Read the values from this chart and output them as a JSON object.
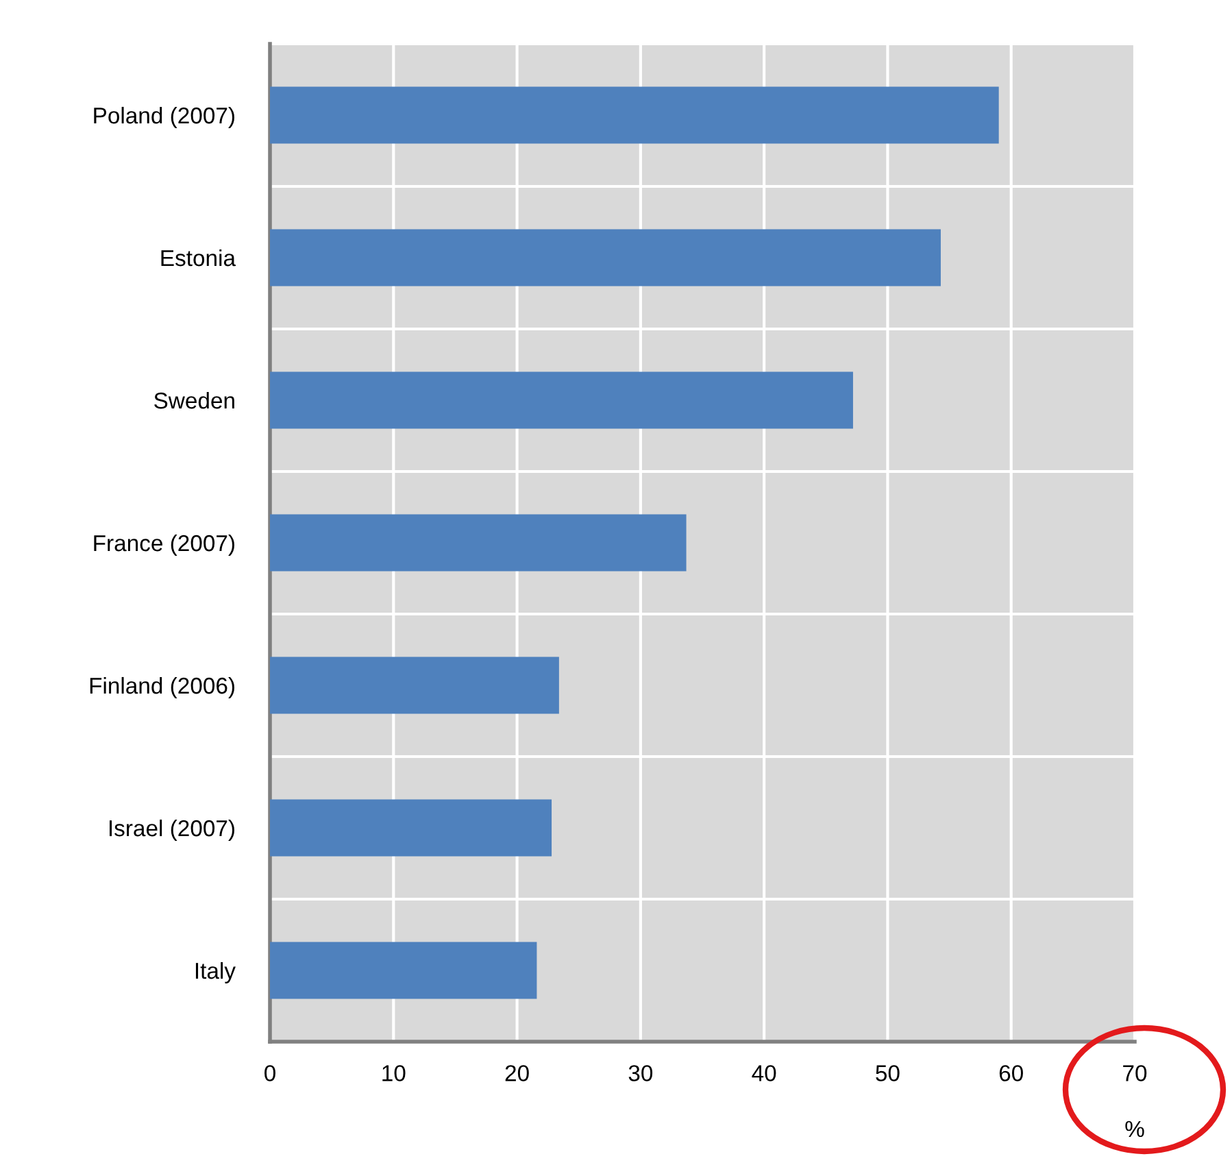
{
  "chart_data": {
    "type": "bar",
    "orientation": "horizontal",
    "xlabel": "%",
    "categories": [
      "Poland (2007)",
      "Estonia",
      "Sweden",
      "France (2007)",
      "Finland (2006)",
      "Israel (2007)",
      "Italy"
    ],
    "values": [
      59.0,
      54.3,
      47.2,
      33.7,
      23.4,
      22.8,
      21.6
    ],
    "color": "#4f81bd",
    "xlim": [
      0,
      70
    ],
    "xticks": [
      0,
      10,
      20,
      30,
      40,
      50,
      60,
      70
    ],
    "grid": true
  }
}
